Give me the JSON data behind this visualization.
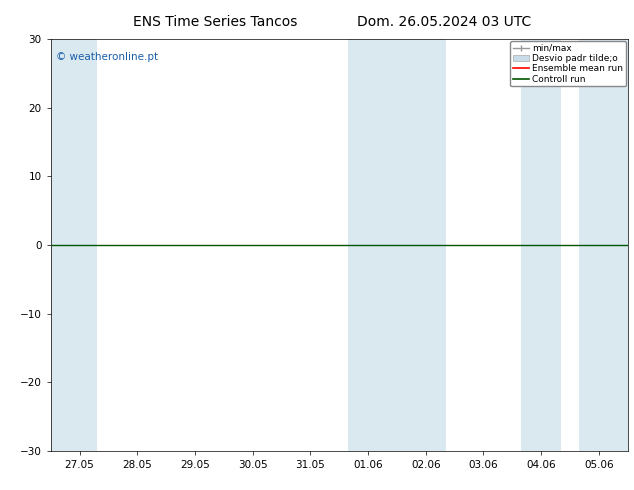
{
  "title_left": "ENS Time Series Tancos",
  "title_right": "Dom. 26.05.2024 03 UTC",
  "watermark": "© weatheronline.pt",
  "ylim": [
    -30,
    30
  ],
  "yticks": [
    -30,
    -20,
    -10,
    0,
    10,
    20,
    30
  ],
  "x_tick_labels": [
    "27.05",
    "28.05",
    "29.05",
    "30.05",
    "31.05",
    "01.06",
    "02.06",
    "03.06",
    "04.06",
    "05.06"
  ],
  "x_tick_positions": [
    0,
    1,
    2,
    3,
    4,
    5,
    6,
    7,
    8,
    9
  ],
  "legend_labels": [
    "min/max",
    "Desvio padr tilde;o",
    "Ensemble mean run",
    "Controll run"
  ],
  "background_color": "#ffffff",
  "band_color": "#dae8f0",
  "title_fontsize": 10,
  "tick_fontsize": 7.5,
  "watermark_color": "#1a5faa"
}
